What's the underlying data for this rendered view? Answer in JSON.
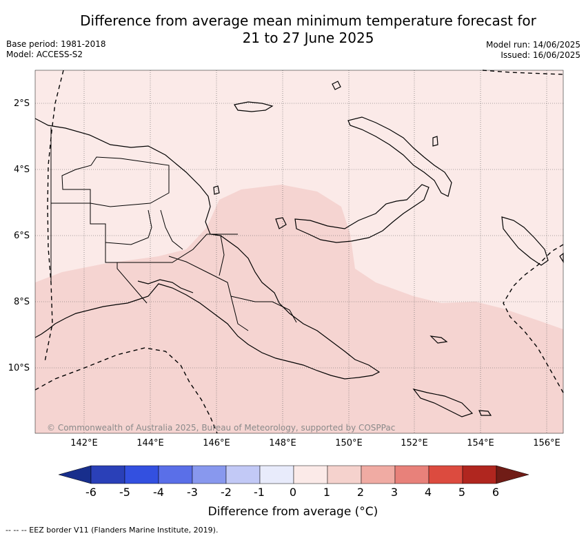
{
  "header": {
    "title_line1": "Difference from average mean minimum temperature forecast for",
    "title_line2": "21 to 27 June 2025",
    "base_period": "Base period: 1981-2018",
    "model": "Model: ACCESS-S2",
    "model_run": "Model run: 14/06/2025",
    "issued": "Issued: 16/06/2025"
  },
  "map": {
    "region": "Papua New Guinea",
    "lat_labels": [
      "2°S",
      "4°S",
      "6°S",
      "8°S",
      "10°S"
    ],
    "lon_labels": [
      "142°E",
      "144°E",
      "146°E",
      "148°E",
      "150°E",
      "152°E",
      "154°E",
      "156°E"
    ],
    "copyright": "© Commonwealth of Australia 2025, Bureau of Meteorology, supported by COSPPac",
    "fill_colors": {
      "band_0_to_1": "#fbeae8",
      "band_1_to_2": "#f5d4d1"
    }
  },
  "colorbar": {
    "tick_labels": [
      "-6",
      "-5",
      "-4",
      "-3",
      "-2",
      "-1",
      "0",
      "1",
      "2",
      "3",
      "4",
      "5",
      "6"
    ],
    "colors": [
      "#182e8c",
      "#2a40b8",
      "#3350e0",
      "#5a6fe8",
      "#8898ee",
      "#c2c9f6",
      "#e8ebfb",
      "#fbeae8",
      "#f5d2cd",
      "#f0aba3",
      "#e8817a",
      "#dc4b3f",
      "#b0261f",
      "#701c16"
    ],
    "label": "Difference from average (°C)"
  },
  "footer": {
    "eez_note": "-- -- -- EEZ border V11 (Flanders Marine Institute, 2019)."
  }
}
